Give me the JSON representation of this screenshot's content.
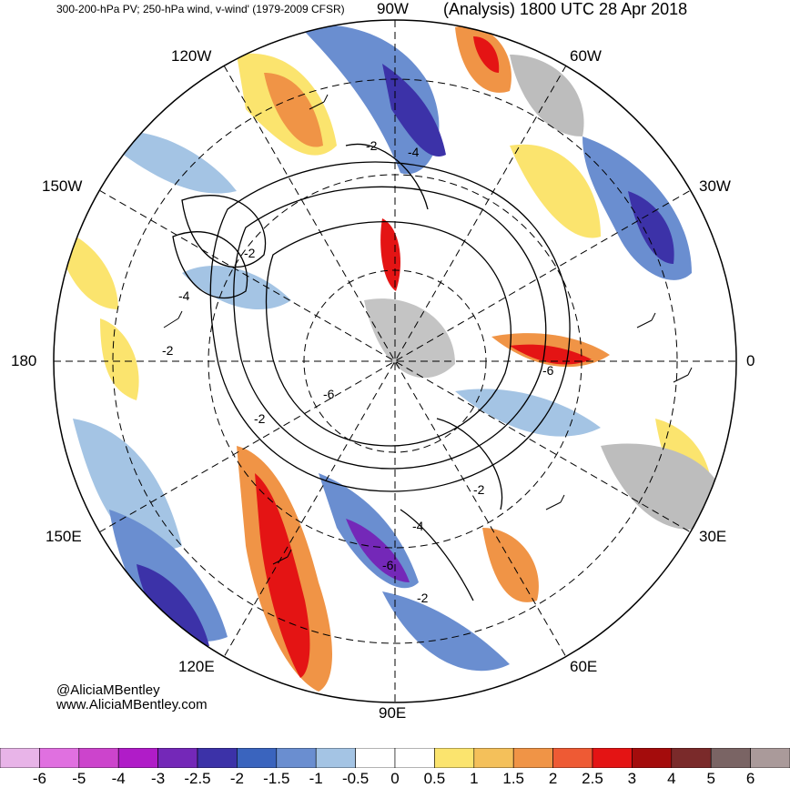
{
  "header": {
    "left_title": "300-200-hPa PV; 250-hPa wind, v-wind' (1979-2009 CFSR)",
    "right_title": "(Analysis) 1800 UTC 28 Apr 2018"
  },
  "longitude_labels": {
    "n": "90W",
    "nne": "60W",
    "ene": "30W",
    "e": "0",
    "ese": "30E",
    "sse": "60E",
    "s": "90E",
    "ssw": "120E",
    "wsw": "150E",
    "w": "180",
    "wnw": "150W",
    "nnw": "120W"
  },
  "credits": {
    "handle": "@AliciaMBentley",
    "website": "www.AliciaMBentley.com"
  },
  "contour_labels": [
    "-2",
    "-4",
    "-2",
    "-4",
    "-2",
    "-6",
    "-6",
    "-2",
    "-4",
    "-6",
    "-2",
    "-2"
  ],
  "colorbar": {
    "colors": [
      "#e8b4e8",
      "#e070e0",
      "#cc44cc",
      "#b01cc8",
      "#7428b8",
      "#3c32a8",
      "#3a64be",
      "#6a8ed0",
      "#a4c4e4",
      "#ffffff",
      "#ffffff",
      "#fbe46e",
      "#f4c05a",
      "#f09446",
      "#ee5a34",
      "#e41414",
      "#a40c0c",
      "#7a2a2a",
      "#7a6464",
      "#aa9a9a"
    ],
    "labels": [
      "-6",
      "-5",
      "-4",
      "-3",
      "-2.5",
      "-2",
      "-1.5",
      "-1",
      "-0.5",
      "0",
      "0.5",
      "1",
      "1.5",
      "2",
      "2.5",
      "3",
      "4",
      "5",
      "6"
    ]
  }
}
